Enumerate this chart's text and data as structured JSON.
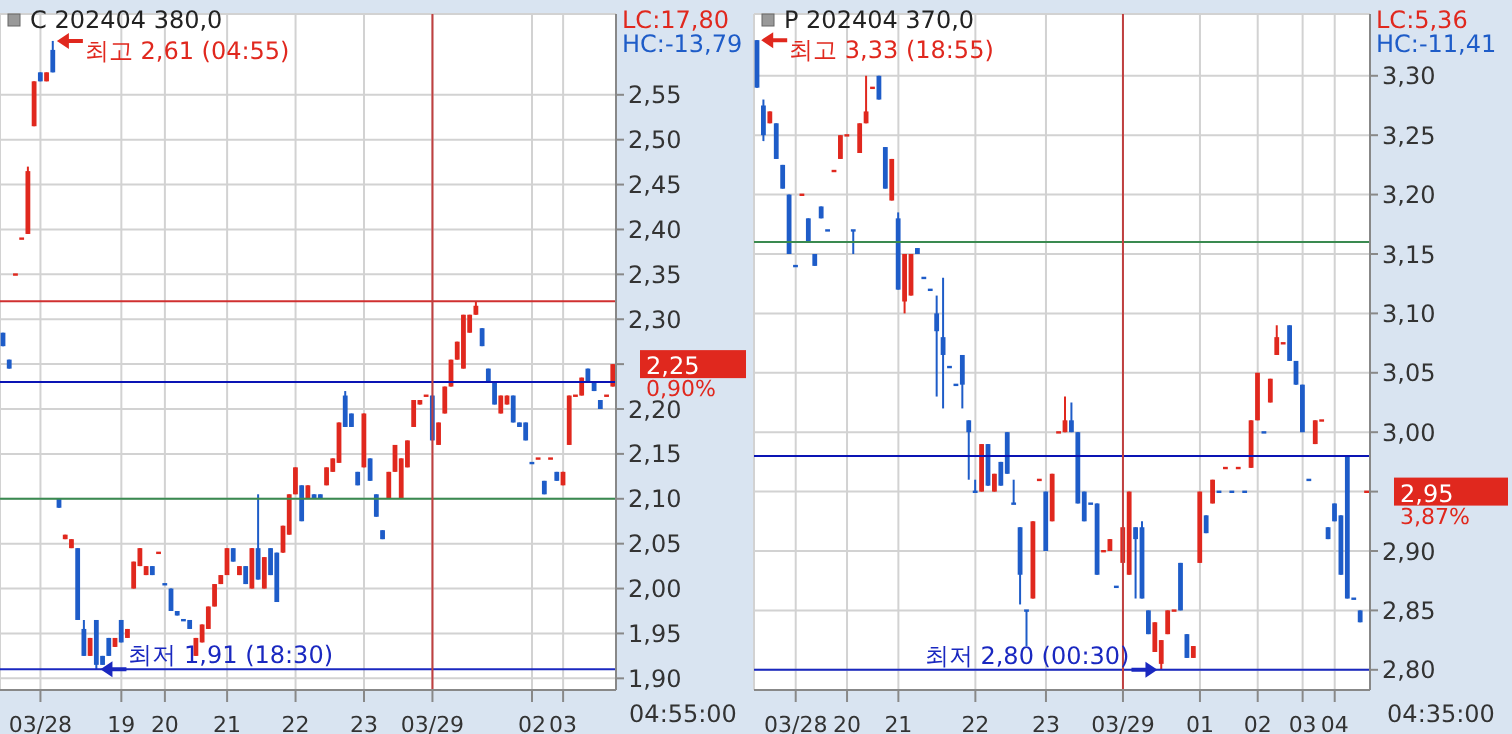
{
  "chart_data": [
    {
      "type": "candlestick",
      "title": "C 202404 380,0",
      "categories": [
        null,
        null,
        null,
        null,
        null,
        null,
        "03/28",
        null,
        null,
        null,
        null,
        null,
        null,
        null,
        null,
        null,
        null,
        null,
        null,
        "19",
        null,
        null,
        null,
        null,
        null,
        null,
        "20",
        null,
        null,
        null,
        null,
        null,
        null,
        null,
        null,
        null,
        "21",
        null,
        null,
        null,
        null,
        null,
        null,
        null,
        null,
        null,
        null,
        "22",
        null,
        null,
        null,
        null,
        null,
        null,
        null,
        null,
        null,
        null,
        "23",
        null,
        null,
        null,
        null,
        null,
        null,
        null,
        null,
        null,
        null,
        "03/29",
        null,
        null,
        null,
        null,
        null,
        null,
        null,
        null,
        null,
        null,
        null,
        null,
        null,
        null,
        null,
        "02",
        null,
        null,
        null,
        null,
        "03",
        null,
        null,
        null,
        null,
        null,
        null,
        null,
        null
      ],
      "ohlc": [
        [
          2.285,
          2.285,
          2.27,
          2.27
        ],
        [
          2.255,
          2.255,
          2.245,
          2.245
        ],
        [
          2.35,
          2.35,
          2.35,
          2.35
        ],
        [
          2.39,
          2.39,
          2.39,
          2.39
        ],
        [
          2.395,
          2.47,
          2.395,
          2.465
        ],
        [
          2.515,
          2.565,
          2.515,
          2.565
        ],
        [
          2.575,
          2.575,
          2.565,
          2.565
        ],
        [
          2.565,
          2.575,
          2.565,
          2.575
        ],
        [
          2.6,
          2.61,
          2.575,
          2.575
        ],
        [
          2.1,
          2.1,
          2.09,
          2.09
        ],
        [
          2.055,
          2.06,
          2.055,
          2.06
        ],
        [
          2.045,
          2.055,
          2.045,
          2.055
        ],
        [
          2.045,
          2.045,
          1.965,
          1.965
        ],
        [
          1.955,
          1.965,
          1.925,
          1.925
        ],
        [
          1.925,
          1.945,
          1.925,
          1.945
        ],
        [
          1.965,
          1.965,
          1.91,
          1.915
        ],
        [
          1.925,
          1.925,
          1.915,
          1.915
        ],
        [
          1.945,
          1.945,
          1.925,
          1.925
        ],
        [
          1.935,
          1.945,
          1.935,
          1.945
        ],
        [
          1.965,
          1.965,
          1.94,
          1.94
        ],
        [
          1.945,
          1.955,
          1.945,
          1.955
        ],
        [
          2.0,
          2.03,
          2.0,
          2.03
        ],
        [
          2.025,
          2.045,
          2.025,
          2.045
        ],
        [
          2.015,
          2.025,
          2.015,
          2.025
        ],
        [
          2.025,
          2.025,
          2.015,
          2.015
        ],
        [
          2.04,
          2.04,
          2.04,
          2.04
        ],
        [
          2.005,
          2.005,
          2.005,
          2.005
        ],
        [
          2.0,
          2.0,
          1.975,
          1.975
        ],
        [
          1.975,
          1.975,
          1.97,
          1.97
        ],
        [
          1.965,
          1.965,
          1.965,
          1.965
        ],
        [
          1.965,
          1.965,
          1.955,
          1.955
        ],
        [
          1.925,
          1.945,
          1.925,
          1.945
        ],
        [
          1.94,
          1.96,
          1.94,
          1.96
        ],
        [
          1.955,
          1.98,
          1.955,
          1.98
        ],
        [
          1.98,
          2.005,
          1.98,
          2.005
        ],
        [
          2.005,
          2.015,
          2.005,
          2.015
        ],
        [
          2.015,
          2.045,
          2.015,
          2.045
        ],
        [
          2.045,
          2.045,
          2.03,
          2.03
        ],
        [
          2.015,
          2.025,
          2.015,
          2.025
        ],
        [
          2.025,
          2.025,
          2.005,
          2.005
        ],
        [
          2.0,
          2.045,
          2.0,
          2.045
        ],
        [
          2.045,
          2.105,
          2.01,
          2.01
        ],
        [
          2.0,
          2.035,
          2.0,
          2.035
        ],
        [
          2.045,
          2.045,
          2.015,
          2.015
        ],
        [
          2.04,
          2.04,
          1.985,
          1.985
        ],
        [
          2.04,
          2.07,
          2.04,
          2.07
        ],
        [
          2.06,
          2.105,
          2.06,
          2.105
        ],
        [
          2.105,
          2.135,
          2.105,
          2.135
        ],
        [
          2.115,
          2.115,
          2.075,
          2.075
        ],
        [
          2.1,
          2.115,
          2.1,
          2.115
        ],
        [
          2.105,
          2.105,
          2.1,
          2.1
        ],
        [
          2.105,
          2.105,
          2.1,
          2.1
        ],
        [
          2.115,
          2.135,
          2.115,
          2.135
        ],
        [
          2.13,
          2.145,
          2.13,
          2.145
        ],
        [
          2.14,
          2.185,
          2.14,
          2.185
        ],
        [
          2.215,
          2.22,
          2.18,
          2.18
        ],
        [
          2.195,
          2.195,
          2.18,
          2.18
        ],
        [
          2.13,
          2.13,
          2.115,
          2.115
        ],
        [
          2.135,
          2.195,
          2.135,
          2.195
        ],
        [
          2.145,
          2.145,
          2.12,
          2.12
        ],
        [
          2.105,
          2.105,
          2.08,
          2.08
        ],
        [
          2.065,
          2.065,
          2.055,
          2.055
        ],
        [
          2.1,
          2.13,
          2.1,
          2.13
        ],
        [
          2.13,
          2.16,
          2.13,
          2.16
        ],
        [
          2.1,
          2.145,
          2.1,
          2.145
        ],
        [
          2.135,
          2.165,
          2.135,
          2.165
        ],
        [
          2.18,
          2.21,
          2.18,
          2.21
        ],
        [
          2.205,
          2.21,
          2.205,
          2.21
        ],
        [
          2.215,
          2.215,
          2.215,
          2.215
        ],
        [
          2.215,
          2.215,
          2.165,
          2.165
        ],
        [
          2.16,
          2.185,
          2.16,
          2.185
        ],
        [
          2.195,
          2.225,
          2.195,
          2.225
        ],
        [
          2.225,
          2.255,
          2.225,
          2.255
        ],
        [
          2.255,
          2.275,
          2.255,
          2.275
        ],
        [
          2.245,
          2.305,
          2.245,
          2.305
        ],
        [
          2.285,
          2.305,
          2.285,
          2.305
        ],
        [
          2.305,
          2.32,
          2.305,
          2.315
        ],
        [
          2.29,
          2.29,
          2.27,
          2.27
        ],
        [
          2.245,
          2.245,
          2.23,
          2.23
        ],
        [
          2.23,
          2.23,
          2.205,
          2.205
        ],
        [
          2.195,
          2.215,
          2.195,
          2.215
        ],
        [
          2.205,
          2.215,
          2.205,
          2.215
        ],
        [
          2.215,
          2.215,
          2.185,
          2.185
        ],
        [
          2.185,
          2.185,
          2.18,
          2.18
        ],
        [
          2.185,
          2.185,
          2.165,
          2.165
        ],
        [
          2.14,
          2.14,
          2.14,
          2.14
        ],
        [
          2.145,
          2.145,
          2.145,
          2.145
        ],
        [
          2.12,
          2.12,
          2.105,
          2.105
        ],
        [
          2.145,
          2.145,
          2.145,
          2.145
        ],
        [
          2.13,
          2.13,
          2.12,
          2.12
        ],
        [
          2.115,
          2.13,
          2.115,
          2.13
        ],
        [
          2.16,
          2.215,
          2.16,
          2.215
        ],
        [
          2.215,
          2.215,
          2.215,
          2.215
        ],
        [
          2.215,
          2.235,
          2.215,
          2.235
        ],
        [
          2.245,
          2.245,
          2.23,
          2.23
        ],
        [
          2.23,
          2.23,
          2.22,
          2.22
        ],
        [
          2.21,
          2.21,
          2.2,
          2.2
        ],
        [
          2.215,
          2.215,
          2.215,
          2.215
        ],
        [
          2.225,
          2.25,
          2.225,
          2.25
        ]
      ],
      "colors": [
        "#1e5cc8",
        "#1e5cc8",
        "#e0281e",
        "#e0281e",
        "#e0281e",
        "#e0281e",
        "#1e5cc8",
        "#e0281e",
        "#1e5cc8",
        "#1e5cc8",
        "#e0281e",
        "#e0281e",
        "#1e5cc8",
        "#1e5cc8",
        "#e0281e",
        "#1e5cc8",
        "#1e5cc8",
        "#1e5cc8",
        "#e0281e",
        "#1e5cc8",
        "#e0281e",
        "#e0281e",
        "#e0281e",
        "#e0281e",
        "#1e5cc8",
        "#e0281e",
        "#1e5cc8",
        "#1e5cc8",
        "#1e5cc8",
        "#1e5cc8",
        "#1e5cc8",
        "#e0281e",
        "#e0281e",
        "#e0281e",
        "#e0281e",
        "#e0281e",
        "#e0281e",
        "#1e5cc8",
        "#e0281e",
        "#1e5cc8",
        "#e0281e",
        "#1e5cc8",
        "#e0281e",
        "#1e5cc8",
        "#1e5cc8",
        "#e0281e",
        "#e0281e",
        "#e0281e",
        "#1e5cc8",
        "#e0281e",
        "#1e5cc8",
        "#1e5cc8",
        "#e0281e",
        "#e0281e",
        "#e0281e",
        "#1e5cc8",
        "#1e5cc8",
        "#1e5cc8",
        "#e0281e",
        "#1e5cc8",
        "#1e5cc8",
        "#1e5cc8",
        "#e0281e",
        "#e0281e",
        "#e0281e",
        "#e0281e",
        "#e0281e",
        "#e0281e",
        "#e0281e",
        "#1e5cc8",
        "#e0281e",
        "#e0281e",
        "#e0281e",
        "#e0281e",
        "#e0281e",
        "#e0281e",
        "#e0281e",
        "#1e5cc8",
        "#1e5cc8",
        "#1e5cc8",
        "#e0281e",
        "#e0281e",
        "#1e5cc8",
        "#1e5cc8",
        "#1e5cc8",
        "#1e5cc8",
        "#e0281e",
        "#1e5cc8",
        "#e0281e",
        "#1e5cc8",
        "#e0281e",
        "#e0281e",
        "#e0281e",
        "#e0281e",
        "#1e5cc8",
        "#1e5cc8",
        "#1e5cc8",
        "#e0281e",
        "#e0281e"
      ],
      "ylim": [
        1.887,
        2.64
      ],
      "yticks": [
        {
          "value": 1.9,
          "label": "1,90"
        },
        {
          "value": 1.95,
          "label": "1,95"
        },
        {
          "value": 2.0,
          "label": "2,00"
        },
        {
          "value": 2.05,
          "label": "2,05"
        },
        {
          "value": 2.1,
          "label": "2,10"
        },
        {
          "value": 2.15,
          "label": "2,15"
        },
        {
          "value": 2.2,
          "label": "2,20"
        },
        {
          "value": 2.25,
          "label": null
        },
        {
          "value": 2.3,
          "label": "2,30"
        },
        {
          "value": 2.35,
          "label": "2,35"
        },
        {
          "value": 2.4,
          "label": "2,40"
        },
        {
          "value": 2.45,
          "label": "2,45"
        },
        {
          "value": 2.5,
          "label": "2,50"
        },
        {
          "value": 2.55,
          "label": "2,55"
        }
      ],
      "grid": true,
      "ref_lines": [
        {
          "axis": "y",
          "value": 2.32,
          "color": "#d03030"
        },
        {
          "axis": "y",
          "value": 2.23,
          "color": "#0a14b4"
        },
        {
          "axis": "y",
          "value": 2.1,
          "color": "#3a8a50"
        },
        {
          "axis": "y",
          "value": 1.91,
          "color": "#1a28c0"
        },
        {
          "axis": "x",
          "value": "03/29",
          "color": "#c04040"
        }
      ],
      "annotations": [
        "최고 2,61 (04:55)",
        "최저 1,91 (18:30)",
        "2,25",
        "LC:17,80",
        "HC:-13,79",
        "0,90%",
        "04:55:00"
      ]
    },
    {
      "type": "candlestick",
      "title": "P 202404 370,0",
      "categories": [
        null,
        null,
        null,
        null,
        null,
        null,
        "03/28",
        null,
        null,
        null,
        null,
        null,
        null,
        null,
        "20",
        null,
        null,
        null,
        null,
        null,
        null,
        null,
        "21",
        null,
        null,
        null,
        null,
        null,
        null,
        null,
        null,
        null,
        null,
        null,
        "22",
        null,
        null,
        null,
        null,
        null,
        null,
        null,
        null,
        null,
        null,
        "23",
        null,
        null,
        null,
        null,
        null,
        null,
        null,
        null,
        null,
        null,
        null,
        "03/29",
        null,
        null,
        null,
        null,
        null,
        null,
        null,
        null,
        null,
        null,
        null,
        "01",
        null,
        null,
        null,
        null,
        null,
        null,
        null,
        null,
        "02",
        null,
        null,
        null,
        null,
        null,
        null,
        "03",
        null,
        null,
        null,
        null,
        "04",
        null,
        null,
        null,
        null,
        null
      ],
      "ohlc": [
        [
          3.33,
          3.33,
          3.29,
          3.29
        ],
        [
          3.275,
          3.28,
          3.245,
          3.25
        ],
        [
          3.26,
          3.27,
          3.26,
          3.27
        ],
        [
          3.26,
          3.26,
          3.23,
          3.23
        ],
        [
          3.225,
          3.225,
          3.205,
          3.205
        ],
        [
          3.2,
          3.2,
          3.15,
          3.15
        ],
        [
          3.14,
          3.14,
          3.14,
          3.14
        ],
        [
          3.2,
          3.2,
          3.2,
          3.2
        ],
        [
          3.18,
          3.18,
          3.16,
          3.16
        ],
        [
          3.15,
          3.15,
          3.14,
          3.14
        ],
        [
          3.19,
          3.19,
          3.18,
          3.18
        ],
        [
          3.17,
          3.17,
          3.17,
          3.17
        ],
        [
          3.22,
          3.22,
          3.22,
          3.22
        ],
        [
          3.23,
          3.25,
          3.23,
          3.25
        ],
        [
          3.25,
          3.25,
          3.25,
          3.25
        ],
        [
          3.17,
          3.17,
          3.15,
          3.17
        ],
        [
          3.235,
          3.26,
          3.235,
          3.26
        ],
        [
          3.26,
          3.3,
          3.26,
          3.27
        ],
        [
          3.29,
          3.29,
          3.29,
          3.29
        ],
        [
          3.3,
          3.3,
          3.28,
          3.28
        ],
        [
          3.24,
          3.24,
          3.205,
          3.205
        ],
        [
          3.195,
          3.23,
          3.195,
          3.23
        ],
        [
          3.18,
          3.185,
          3.12,
          3.12
        ],
        [
          3.11,
          3.15,
          3.1,
          3.15
        ],
        [
          3.115,
          3.15,
          3.115,
          3.15
        ],
        [
          3.155,
          3.155,
          3.15,
          3.15
        ],
        [
          3.13,
          3.13,
          3.13,
          3.13
        ],
        [
          3.12,
          3.12,
          3.12,
          3.12
        ],
        [
          3.1,
          3.115,
          3.03,
          3.085
        ],
        [
          3.08,
          3.13,
          3.02,
          3.065
        ],
        [
          3.055,
          3.055,
          3.055,
          3.055
        ],
        [
          3.04,
          3.04,
          3.04,
          3.04
        ],
        [
          3.065,
          3.065,
          3.02,
          3.04
        ],
        [
          3.01,
          3.01,
          2.96,
          3.0
        ],
        [
          2.95,
          2.96,
          2.95,
          2.95
        ],
        [
          2.95,
          2.99,
          2.95,
          2.99
        ],
        [
          2.99,
          2.99,
          2.955,
          2.955
        ],
        [
          2.95,
          2.965,
          2.95,
          2.965
        ],
        [
          2.975,
          2.975,
          2.955,
          2.955
        ],
        [
          3.0,
          3.0,
          2.965,
          2.965
        ],
        [
          2.94,
          2.96,
          2.94,
          2.94
        ],
        [
          2.92,
          2.92,
          2.855,
          2.88
        ],
        [
          2.85,
          2.85,
          2.82,
          2.85
        ],
        [
          2.86,
          2.925,
          2.86,
          2.925
        ],
        [
          2.96,
          2.96,
          2.96,
          2.96
        ],
        [
          2.95,
          2.95,
          2.9,
          2.9
        ],
        [
          2.925,
          2.965,
          2.925,
          2.965
        ],
        [
          3.0,
          3.0,
          3.0,
          3.0
        ],
        [
          3.0,
          3.03,
          3.0,
          3.01
        ],
        [
          3.01,
          3.025,
          3.0,
          3.0
        ],
        [
          3.0,
          3.0,
          2.94,
          2.94
        ],
        [
          2.95,
          2.95,
          2.925,
          2.925
        ],
        [
          2.94,
          2.94,
          2.94,
          2.94
        ],
        [
          2.94,
          2.94,
          2.88,
          2.88
        ],
        [
          2.9,
          2.9,
          2.9,
          2.9
        ],
        [
          2.9,
          2.91,
          2.9,
          2.91
        ],
        [
          2.87,
          2.87,
          2.87,
          2.87
        ],
        [
          2.89,
          2.92,
          2.89,
          2.92
        ],
        [
          2.88,
          2.95,
          2.88,
          2.95
        ],
        [
          2.92,
          2.92,
          2.86,
          2.91
        ],
        [
          2.92,
          2.925,
          2.86,
          2.86
        ],
        [
          2.85,
          2.85,
          2.83,
          2.83
        ],
        [
          2.815,
          2.84,
          2.815,
          2.84
        ],
        [
          2.805,
          2.825,
          2.8,
          2.825
        ],
        [
          2.83,
          2.85,
          2.83,
          2.85
        ],
        [
          2.85,
          2.85,
          2.85,
          2.85
        ],
        [
          2.89,
          2.89,
          2.85,
          2.85
        ],
        [
          2.83,
          2.83,
          2.81,
          2.81
        ],
        [
          2.81,
          2.82,
          2.81,
          2.82
        ],
        [
          2.89,
          2.95,
          2.89,
          2.95
        ],
        [
          2.93,
          2.93,
          2.915,
          2.915
        ],
        [
          2.94,
          2.96,
          2.94,
          2.96
        ],
        [
          2.95,
          2.95,
          2.95,
          2.95
        ],
        [
          2.97,
          2.97,
          2.97,
          2.97
        ],
        [
          2.95,
          2.95,
          2.95,
          2.95
        ],
        [
          2.97,
          2.97,
          2.97,
          2.97
        ],
        [
          2.95,
          2.95,
          2.95,
          2.95
        ],
        [
          2.97,
          3.01,
          2.97,
          3.01
        ],
        [
          3.01,
          3.05,
          3.01,
          3.05
        ],
        [
          3.0,
          3.0,
          3.0,
          3.0
        ],
        [
          3.025,
          3.045,
          3.025,
          3.045
        ],
        [
          3.065,
          3.09,
          3.065,
          3.08
        ],
        [
          3.075,
          3.075,
          3.075,
          3.075
        ],
        [
          3.09,
          3.09,
          3.06,
          3.06
        ],
        [
          3.06,
          3.06,
          3.04,
          3.04
        ],
        [
          3.04,
          3.04,
          3.0,
          3.0
        ],
        [
          2.96,
          2.96,
          2.96,
          2.96
        ],
        [
          2.99,
          3.01,
          2.99,
          3.01
        ],
        [
          3.01,
          3.01,
          3.01,
          3.01
        ],
        [
          2.92,
          2.92,
          2.91,
          2.91
        ],
        [
          2.94,
          2.94,
          2.925,
          2.925
        ],
        [
          2.93,
          2.93,
          2.88,
          2.88
        ],
        [
          2.98,
          2.98,
          2.86,
          2.86
        ],
        [
          2.86,
          2.86,
          2.86,
          2.86
        ],
        [
          2.85,
          2.85,
          2.84,
          2.84
        ],
        [
          2.95,
          2.95,
          2.95,
          2.95
        ]
      ],
      "colors": [
        "#1e5cc8",
        "#1e5cc8",
        "#e0281e",
        "#1e5cc8",
        "#1e5cc8",
        "#1e5cc8",
        "#1e5cc8",
        "#e0281e",
        "#1e5cc8",
        "#1e5cc8",
        "#1e5cc8",
        "#1e5cc8",
        "#e0281e",
        "#e0281e",
        "#e0281e",
        "#1e5cc8",
        "#e0281e",
        "#e0281e",
        "#e0281e",
        "#1e5cc8",
        "#1e5cc8",
        "#e0281e",
        "#1e5cc8",
        "#e0281e",
        "#e0281e",
        "#1e5cc8",
        "#1e5cc8",
        "#1e5cc8",
        "#1e5cc8",
        "#1e5cc8",
        "#1e5cc8",
        "#1e5cc8",
        "#1e5cc8",
        "#1e5cc8",
        "#1e5cc8",
        "#e0281e",
        "#1e5cc8",
        "#e0281e",
        "#1e5cc8",
        "#1e5cc8",
        "#1e5cc8",
        "#1e5cc8",
        "#1e5cc8",
        "#e0281e",
        "#e0281e",
        "#1e5cc8",
        "#e0281e",
        "#e0281e",
        "#e0281e",
        "#1e5cc8",
        "#1e5cc8",
        "#1e5cc8",
        "#1e5cc8",
        "#1e5cc8",
        "#e0281e",
        "#e0281e",
        "#1e5cc8",
        "#e0281e",
        "#e0281e",
        "#1e5cc8",
        "#1e5cc8",
        "#1e5cc8",
        "#e0281e",
        "#e0281e",
        "#e0281e",
        "#e0281e",
        "#1e5cc8",
        "#1e5cc8",
        "#e0281e",
        "#e0281e",
        "#1e5cc8",
        "#e0281e",
        "#1e5cc8",
        "#e0281e",
        "#1e5cc8",
        "#e0281e",
        "#1e5cc8",
        "#e0281e",
        "#e0281e",
        "#1e5cc8",
        "#e0281e",
        "#e0281e",
        "#e0281e",
        "#1e5cc8",
        "#1e5cc8",
        "#1e5cc8",
        "#1e5cc8",
        "#e0281e",
        "#e0281e",
        "#1e5cc8",
        "#1e5cc8",
        "#1e5cc8",
        "#1e5cc8",
        "#1e5cc8",
        "#1e5cc8",
        "#e0281e"
      ],
      "ylim": [
        2.783,
        3.352
      ],
      "yticks": [
        {
          "value": 2.8,
          "label": "2,80"
        },
        {
          "value": 2.85,
          "label": "2,85"
        },
        {
          "value": 2.9,
          "label": "2,90"
        },
        {
          "value": 2.95,
          "label": null
        },
        {
          "value": 3.0,
          "label": "3,00"
        },
        {
          "value": 3.05,
          "label": "3,05"
        },
        {
          "value": 3.1,
          "label": "3,10"
        },
        {
          "value": 3.15,
          "label": "3,15"
        },
        {
          "value": 3.2,
          "label": "3,20"
        },
        {
          "value": 3.25,
          "label": "3,25"
        },
        {
          "value": 3.3,
          "label": "3,30"
        }
      ],
      "grid": true,
      "ref_lines": [
        {
          "axis": "y",
          "value": 3.16,
          "color": "#3a8a50"
        },
        {
          "axis": "y",
          "value": 2.98,
          "color": "#0a14b4"
        },
        {
          "axis": "y",
          "value": 2.8,
          "color": "#1a28c0"
        },
        {
          "axis": "x",
          "value": "03/29",
          "color": "#c04040"
        }
      ],
      "annotations": [
        "최고 3,33 (18:55)",
        "최저 2,80 (00:30)",
        "2,95",
        "LC:5,36",
        "HC:-11,41",
        "3,87%",
        "04:35:00"
      ]
    }
  ]
}
